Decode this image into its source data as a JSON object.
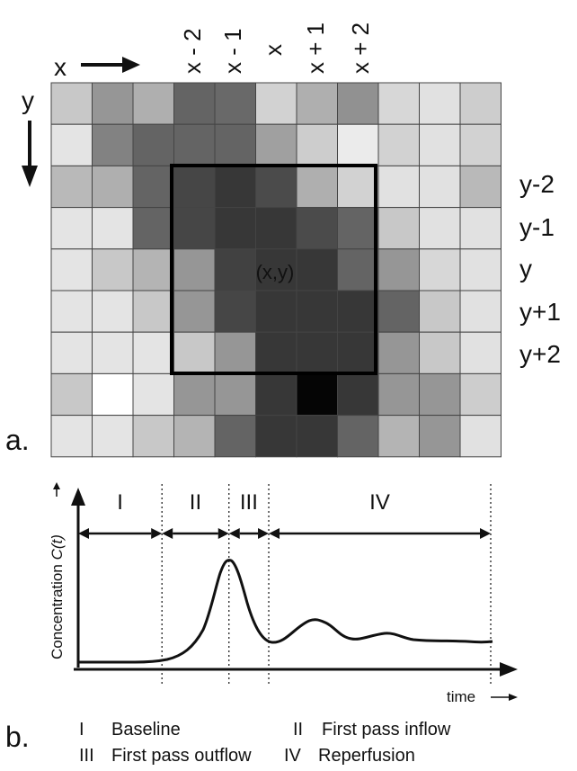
{
  "panel_a": {
    "panel_label": "a.",
    "x_axis_label": "x",
    "y_axis_label": "y",
    "column_labels": [
      "x - 2",
      "x - 1",
      "x",
      "x + 1",
      "x + 2"
    ],
    "row_labels": [
      "y-2",
      "y-1",
      "y",
      "y+1",
      "y+2"
    ],
    "center_label": "(x,y)",
    "center_label_color": "#ffee00",
    "grid_gray_levels": [
      [
        200,
        150,
        175,
        100,
        105,
        210,
        175,
        145,
        215,
        225,
        205
      ],
      [
        228,
        130,
        100,
        100,
        100,
        160,
        205,
        235,
        210,
        225,
        210
      ],
      [
        185,
        175,
        100,
        70,
        55,
        75,
        175,
        210,
        225,
        225,
        185
      ],
      [
        228,
        228,
        100,
        70,
        55,
        55,
        75,
        100,
        200,
        225,
        225
      ],
      [
        228,
        200,
        180,
        150,
        65,
        55,
        55,
        100,
        150,
        215,
        225
      ],
      [
        228,
        228,
        200,
        150,
        70,
        55,
        55,
        55,
        100,
        200,
        225
      ],
      [
        228,
        228,
        228,
        200,
        150,
        55,
        55,
        55,
        150,
        200,
        225
      ],
      [
        200,
        255,
        228,
        150,
        150,
        55,
        5,
        55,
        150,
        150,
        205
      ],
      [
        228,
        228,
        200,
        180,
        100,
        55,
        55,
        100,
        180,
        150,
        225
      ]
    ]
  },
  "panel_b": {
    "panel_label": "b.",
    "y_axis_label": "Concentration C(t)",
    "y_axis_label_plain": "Concentration ",
    "y_axis_label_italic": "C(t)",
    "x_axis_label": "time",
    "phases": [
      {
        "roman": "I",
        "name": "Baseline",
        "t_start": 0,
        "t_end": 40
      },
      {
        "roman": "II",
        "name": "First pass inflow",
        "t_start": 40,
        "t_end": 72
      },
      {
        "roman": "III",
        "name": "First pass outflow",
        "t_start": 72,
        "t_end": 91
      },
      {
        "roman": "IV",
        "name": "Reperfusion",
        "t_start": 91,
        "t_end": 197
      }
    ],
    "legend_rows": [
      [
        "I",
        "Baseline",
        "II",
        "First pass inflow"
      ],
      [
        "III",
        "First pass outflow",
        "IV",
        "Reperfusion"
      ]
    ]
  }
}
